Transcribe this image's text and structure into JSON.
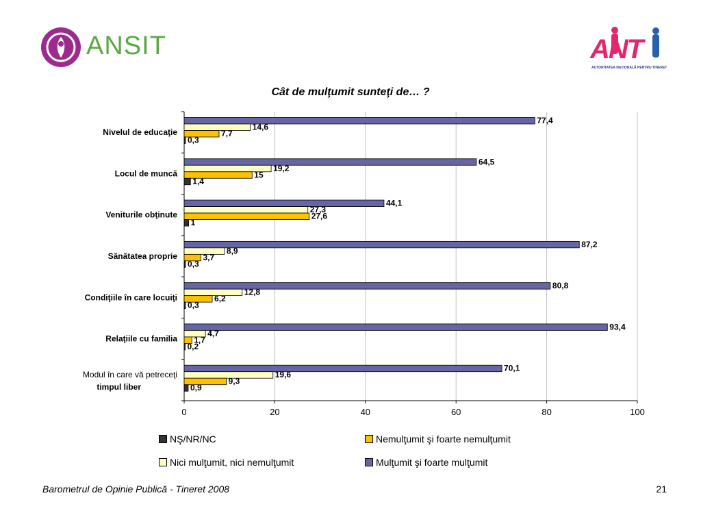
{
  "header": {
    "left_logo_text": "ANSIT",
    "right_logo_text": "ANT",
    "right_logo_subtitle": "AUTORITATEA NAŢIONALĂ PENTRU TINERET"
  },
  "colors": {
    "ns": "#333333",
    "nemultumit": "#ffc000",
    "nici": "#ffffc0",
    "multumit": "#6666a4",
    "grid": "#c0c0c0"
  },
  "chart_data": {
    "type": "bar",
    "orientation": "horizontal",
    "title": "Cât de mulţumit sunteţi de… ?",
    "categories": [
      {
        "label": "Nivelul de educaţie"
      },
      {
        "label": "Locul de muncă"
      },
      {
        "label": "Veniturile obţinute"
      },
      {
        "label": "Sănătatea proprie"
      },
      {
        "label": "Condiţiile în care locuiţi"
      },
      {
        "label": "Relaţiile cu familia"
      },
      {
        "label_line1": "Modul în care vă petreceţi",
        "label_line2": "timpul liber"
      }
    ],
    "series": [
      {
        "name": "Mulţumit şi foarte mulţumit",
        "color_key": "multumit",
        "values": [
          77.4,
          64.5,
          44.1,
          87.2,
          80.8,
          93.4,
          70.1
        ],
        "labels": [
          "77,4",
          "64,5",
          "44,1",
          "87,2",
          "80,8",
          "93,4",
          "70,1"
        ]
      },
      {
        "name": "Nici mulţumit, nici nemulţumit",
        "color_key": "nici",
        "values": [
          14.6,
          19.2,
          27.3,
          8.9,
          12.8,
          4.7,
          19.6
        ],
        "labels": [
          "14,6",
          "19,2",
          "27,3",
          "8,9",
          "12,8",
          "4,7",
          "19,6"
        ]
      },
      {
        "name": "Nemulţumit şi foarte nemulţumit",
        "color_key": "nemultumit",
        "values": [
          7.7,
          15,
          27.6,
          3.7,
          6.2,
          1.7,
          9.3
        ],
        "labels": [
          "7,7",
          "15",
          "27,6",
          "3,7",
          "6,2",
          "1,7",
          "9,3"
        ]
      },
      {
        "name": "NŞ/NR/NC",
        "color_key": "ns",
        "values": [
          0.3,
          1.4,
          1,
          0.3,
          0.3,
          0.2,
          0.9
        ],
        "labels": [
          "0,3",
          "1,4",
          "1",
          "0,3",
          "0,3",
          "0,2",
          "0,9"
        ]
      }
    ],
    "xlim": [
      0,
      100
    ],
    "xticks": [
      "0",
      "20",
      "40",
      "60",
      "80",
      "100"
    ],
    "grid": true,
    "legend_position": "bottom"
  },
  "legend": {
    "ns": "NŞ/NR/NC",
    "nemultumit": "Nemulţumit şi foarte nemulţumit",
    "nici": "Nici mulţumit, nici nemulţumit",
    "multumit": "Mulţumit şi foarte mulţumit"
  },
  "footer": {
    "source": "Barometrul de Opinie Publică - Tineret 2008",
    "page_number": "21"
  }
}
